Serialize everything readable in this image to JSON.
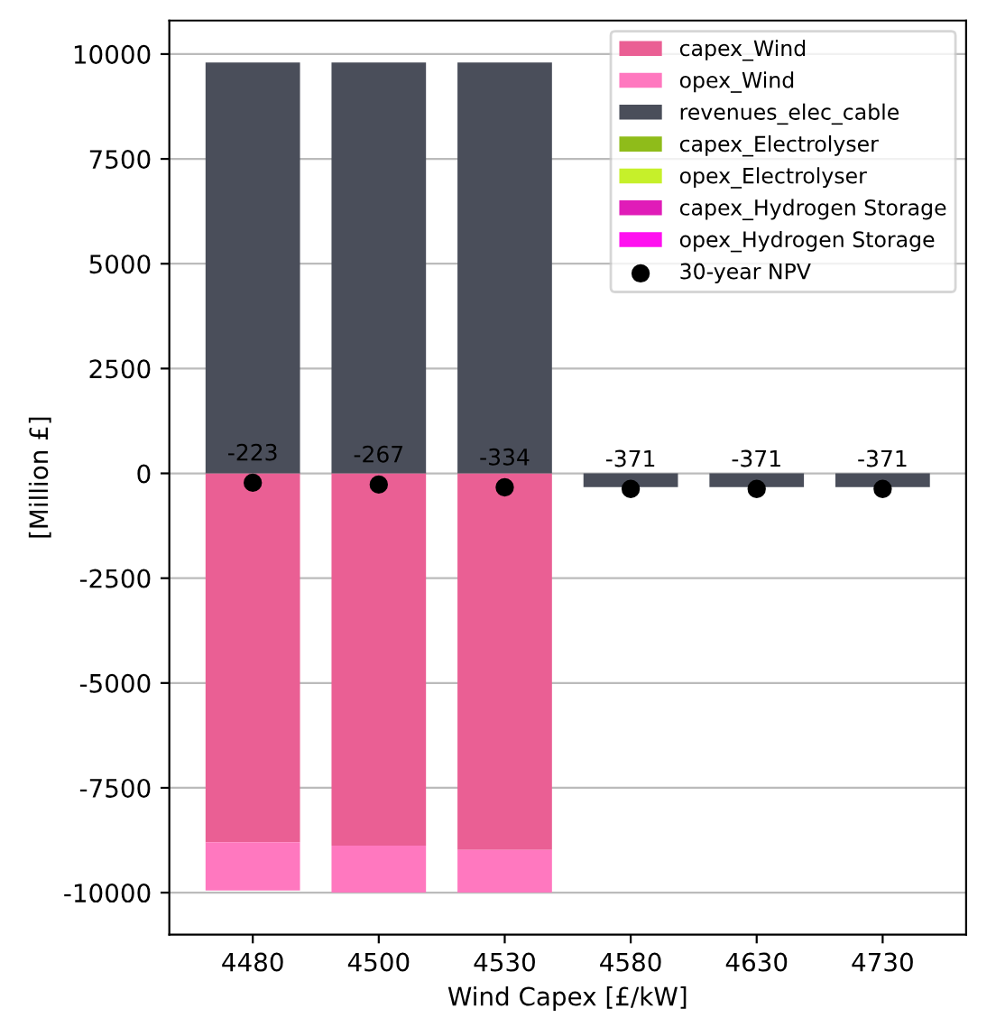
{
  "chart_data": {
    "type": "bar",
    "stacked": true,
    "xlabel": "Wind Capex [£/kW]",
    "ylabel": "[Million £]",
    "categories": [
      "4480",
      "4500",
      "4530",
      "4580",
      "4630",
      "4730"
    ],
    "series": [
      {
        "name": "capex_Wind",
        "color": "#ea5f94",
        "values": [
          -8800,
          -8880,
          -8980,
          0,
          0,
          0
        ]
      },
      {
        "name": "opex_Wind",
        "color": "#ff78bf",
        "values": [
          -1150,
          -1120,
          -1020,
          0,
          0,
          0
        ]
      },
      {
        "name": "revenues_elec_cable",
        "color": "#4a4e5a",
        "values": [
          9800,
          9800,
          9800,
          -330,
          -330,
          -330
        ]
      },
      {
        "name": "capex_Electrolyser",
        "color": "#8fbc1a",
        "values": [
          0,
          0,
          0,
          0,
          0,
          0
        ]
      },
      {
        "name": "opex_Electrolyser",
        "color": "#c6f02a",
        "values": [
          0,
          0,
          0,
          0,
          0,
          0
        ]
      },
      {
        "name": "capex_Hydrogen Storage",
        "color": "#e01cb8",
        "values": [
          0,
          0,
          0,
          0,
          0,
          0
        ]
      },
      {
        "name": "opex_Hydrogen Storage",
        "color": "#ff10f0",
        "values": [
          0,
          0,
          0,
          0,
          0,
          0
        ]
      },
      {
        "name": "30-year NPV",
        "type": "scatter",
        "color": "#000000",
        "marker": "circle",
        "data_labels": true,
        "values": [
          -223,
          -267,
          -334,
          -371,
          -371,
          -371
        ]
      }
    ],
    "ylim": [
      -11000,
      10800
    ],
    "yticks": [
      -10000,
      -7500,
      -5000,
      -2500,
      0,
      2500,
      5000,
      7500,
      10000
    ],
    "grid": "y",
    "legend": "top right"
  }
}
